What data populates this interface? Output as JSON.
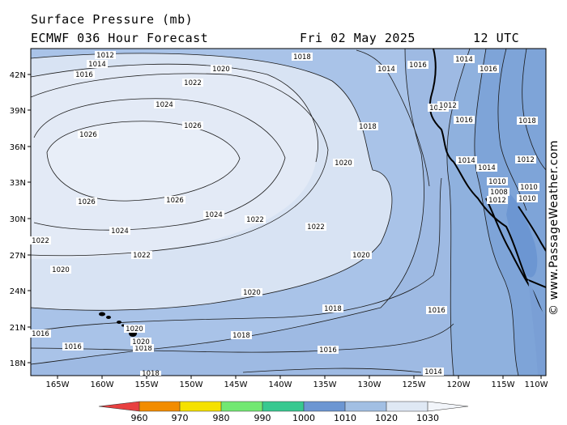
{
  "header": {
    "title": "Surface Pressure (mb)",
    "model": "ECMWF 036 Hour Forecast",
    "date": "Fri 02 May 2025",
    "time": "12 UTC"
  },
  "credit": "© www.PassageWeather.com",
  "map": {
    "lat_labels": [
      "42N",
      "39N",
      "36N",
      "33N",
      "30N",
      "27N",
      "24N",
      "21N",
      "18N"
    ],
    "lon_labels": [
      "165W",
      "160W",
      "155W",
      "150W",
      "145W",
      "140W",
      "135W",
      "130W",
      "125W",
      "120W",
      "115W",
      "110W"
    ],
    "contour_labels": [
      {
        "text": "1012"
      },
      {
        "text": "1014"
      },
      {
        "text": "1016"
      },
      {
        "text": "1018"
      },
      {
        "text": "1020"
      },
      {
        "text": "1022"
      },
      {
        "text": "1024"
      },
      {
        "text": "1026"
      },
      {
        "text": "1026"
      },
      {
        "text": "1026"
      },
      {
        "text": "1026"
      },
      {
        "text": "1024"
      },
      {
        "text": "1022"
      },
      {
        "text": "1022"
      },
      {
        "text": "1022"
      },
      {
        "text": "1022"
      },
      {
        "text": "1024"
      },
      {
        "text": "1020"
      },
      {
        "text": "1020"
      },
      {
        "text": "1020"
      },
      {
        "text": "1020"
      },
      {
        "text": "1018"
      },
      {
        "text": "1018"
      },
      {
        "text": "1016"
      },
      {
        "text": "1016"
      },
      {
        "text": "1018"
      },
      {
        "text": "1016"
      },
      {
        "text": "1018"
      },
      {
        "text": "1020"
      },
      {
        "text": "1020"
      },
      {
        "text": "1016"
      },
      {
        "text": "1014"
      },
      {
        "text": "1016"
      },
      {
        "text": "1014"
      },
      {
        "text": "1018"
      },
      {
        "text": "1020"
      },
      {
        "text": "1018"
      },
      {
        "text": "1016"
      },
      {
        "text": "1014"
      },
      {
        "text": "1016"
      },
      {
        "text": "1014"
      },
      {
        "text": "1012"
      },
      {
        "text": "1014"
      },
      {
        "text": "1010"
      },
      {
        "text": "1012"
      },
      {
        "text": "1010"
      },
      {
        "text": "1008"
      },
      {
        "text": "1010"
      },
      {
        "text": "1012"
      }
    ]
  },
  "legend": {
    "labels": [
      "960",
      "970",
      "980",
      "990",
      "1000",
      "1010",
      "1020",
      "1030"
    ],
    "colors": [
      "#e84040",
      "#f28c00",
      "#f5e100",
      "#72e872",
      "#38c890",
      "#6c96d2",
      "#a2bfe3",
      "#dfe8f4"
    ]
  }
}
